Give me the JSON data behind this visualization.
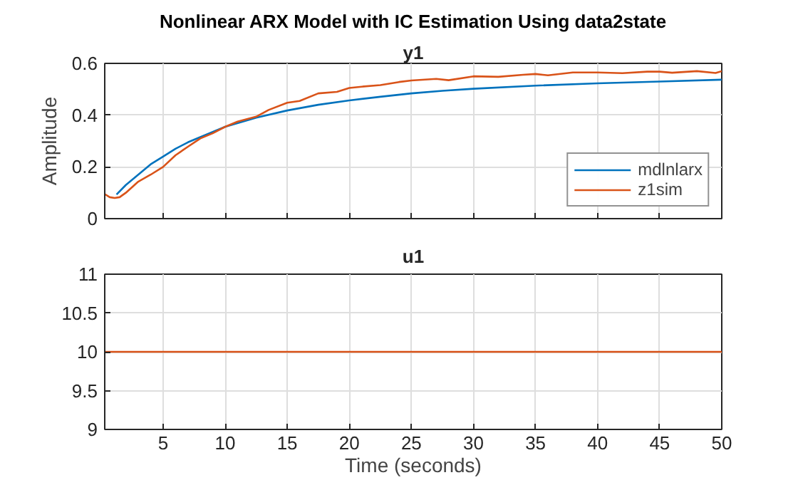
{
  "chart_data": [
    {
      "type": "line",
      "title": "Nonlinear ARX Model with IC Estimation Using data2state",
      "subtitle": "y1",
      "ylabel": "Amplitude",
      "xlim": [
        0.3,
        50
      ],
      "xticks": [
        5,
        10,
        15,
        20,
        25,
        30,
        35,
        40,
        45,
        50
      ],
      "ylim": [
        0,
        0.6
      ],
      "yticks": [
        0,
        0.2,
        0.4,
        0.6
      ],
      "grid": true,
      "legend": "bottom right",
      "tick_labels": "y",
      "series": [
        {
          "name": "mdlnlarx",
          "color": "#0072bd",
          "x": [
            1.25,
            2,
            3,
            4,
            5,
            6,
            7,
            8,
            10,
            12.5,
            15,
            17.5,
            20,
            22.5,
            25,
            27.5,
            30,
            35,
            40,
            45,
            50
          ],
          "values": [
            0.093,
            0.13,
            0.17,
            0.21,
            0.24,
            0.27,
            0.295,
            0.315,
            0.355,
            0.39,
            0.418,
            0.44,
            0.457,
            0.471,
            0.484,
            0.494,
            0.502,
            0.514,
            0.523,
            0.53,
            0.537
          ]
        },
        {
          "name": "z1sim",
          "color": "#d95319",
          "x": [
            0.3,
            0.7,
            1.1,
            1.5,
            2,
            3,
            4,
            5,
            6,
            7,
            8,
            9,
            10,
            11,
            12.5,
            13.5,
            15,
            16,
            17.5,
            19,
            20,
            21,
            22.5,
            24,
            25,
            27,
            28,
            30,
            32,
            34,
            35,
            36,
            38,
            40,
            42,
            44,
            45,
            46,
            48,
            49.5,
            50
          ],
          "values": [
            0.095,
            0.083,
            0.08,
            0.083,
            0.1,
            0.143,
            0.17,
            0.2,
            0.245,
            0.278,
            0.31,
            0.33,
            0.355,
            0.375,
            0.394,
            0.42,
            0.448,
            0.455,
            0.484,
            0.49,
            0.505,
            0.51,
            0.516,
            0.528,
            0.534,
            0.54,
            0.535,
            0.55,
            0.548,
            0.556,
            0.559,
            0.554,
            0.565,
            0.565,
            0.562,
            0.568,
            0.568,
            0.564,
            0.57,
            0.563,
            0.57
          ]
        }
      ]
    },
    {
      "type": "line",
      "title": "u1",
      "xlabel": "Time (seconds)",
      "xlim": [
        0.3,
        50
      ],
      "xticks": [
        5,
        10,
        15,
        20,
        25,
        30,
        35,
        40,
        45,
        50
      ],
      "ylim": [
        9,
        11
      ],
      "yticks": [
        9,
        9.5,
        10,
        10.5,
        11
      ],
      "grid": true,
      "series": [
        {
          "color": "#d95319",
          "x": [
            0.3,
            50
          ],
          "values": [
            10,
            10
          ]
        }
      ]
    }
  ]
}
